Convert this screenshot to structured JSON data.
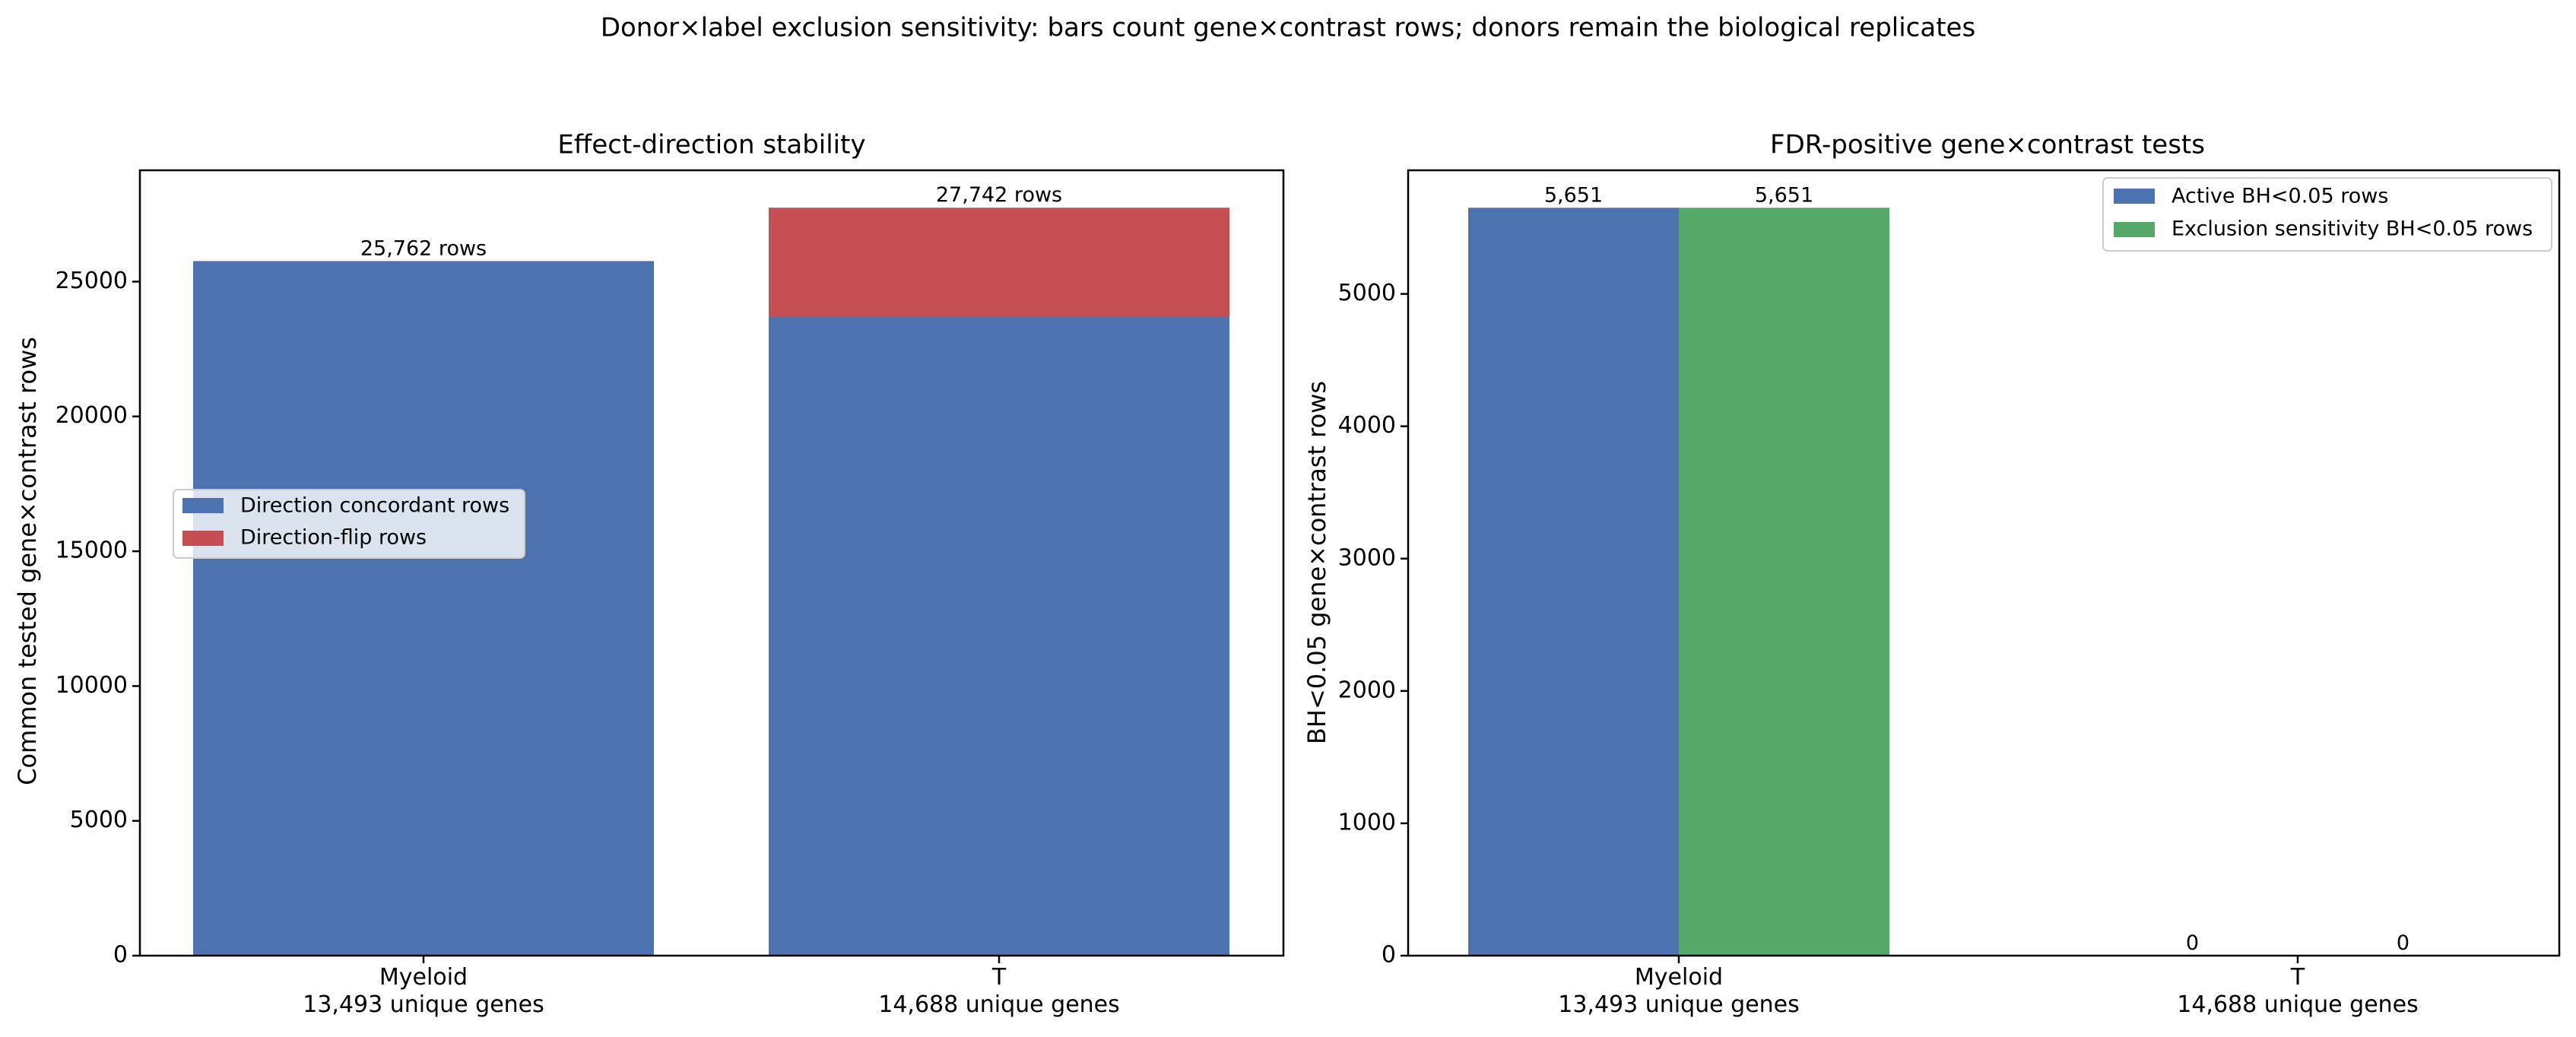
{
  "suptitle": "Donor×label exclusion sensitivity: bars count gene×contrast rows; donors remain the biological replicates",
  "colors": {
    "blue": "#4c72b0",
    "red": "#c44e52",
    "green": "#55a868"
  },
  "chart_data": [
    {
      "type": "bar",
      "stacked": true,
      "title": "Effect-direction stability",
      "xlabel": "",
      "ylabel": "Common tested gene×contrast rows",
      "ylim": [
        0,
        29129
      ],
      "yticks": [
        "0",
        "5000",
        "10000",
        "15000",
        "20000",
        "25000"
      ],
      "categories": [
        {
          "name": "Myeloid",
          "sub": "13,493 unique genes"
        },
        {
          "name": "T",
          "sub": "14,688 unique genes"
        }
      ],
      "series": [
        {
          "name": "Direction concordant rows",
          "color": "#4c72b0",
          "values": [
            25762,
            23700
          ]
        },
        {
          "name": "Direction-flip rows",
          "color": "#c44e52",
          "values": [
            0,
            4042
          ]
        }
      ],
      "total_labels": [
        "25,762 rows",
        "27,742 rows"
      ],
      "legend": "center-left"
    },
    {
      "type": "bar",
      "grouped": true,
      "title": "FDR-positive gene×contrast tests",
      "xlabel": "",
      "ylabel": "BH<0.05 gene×contrast rows",
      "ylim": [
        0,
        5934
      ],
      "yticks": [
        "0",
        "1000",
        "2000",
        "3000",
        "4000",
        "5000"
      ],
      "categories": [
        {
          "name": "Myeloid",
          "sub": "13,493 unique genes"
        },
        {
          "name": "T",
          "sub": "14,688 unique genes"
        }
      ],
      "series": [
        {
          "name": "Active BH<0.05 rows",
          "color": "#4c72b0",
          "values": [
            5651,
            0
          ],
          "labels": [
            "5,651",
            "0"
          ]
        },
        {
          "name": "Exclusion sensitivity BH<0.05 rows",
          "color": "#55a868",
          "values": [
            5651,
            0
          ],
          "labels": [
            "5,651",
            "0"
          ]
        }
      ],
      "legend": "top-right"
    }
  ]
}
